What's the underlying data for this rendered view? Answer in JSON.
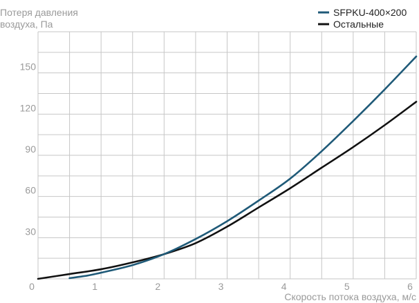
{
  "chart_data": {
    "type": "line",
    "xlabel": "Скорость потока воздуха, м/с",
    "ylabel_lines": [
      "Потеря давления",
      "воздуха, Па"
    ],
    "xlim": [
      0,
      6
    ],
    "ylim": [
      0,
      180
    ],
    "xticks": [
      0,
      1,
      2,
      3,
      4,
      5,
      6
    ],
    "xtick_labels": [
      "0",
      "1",
      "2",
      "3",
      "4",
      "5",
      "6"
    ],
    "yticks": [
      30,
      60,
      90,
      120,
      150
    ],
    "ytick_labels": [
      "30",
      "60",
      "90",
      "120",
      "150"
    ],
    "grid": true,
    "legend_position": "top-right",
    "series": [
      {
        "name": "SFPKU-400×200",
        "color": "#1f5a78",
        "x": [
          0.5,
          0.8,
          1.0,
          1.5,
          2.0,
          2.5,
          3.0,
          3.5,
          4.0,
          4.5,
          5.0,
          5.5,
          6.0
        ],
        "y": [
          0.5,
          2.5,
          4.5,
          10,
          18,
          29,
          42,
          57,
          73,
          93,
          115,
          138,
          162
        ]
      },
      {
        "name": "Остальные",
        "color": "#111111",
        "x": [
          0.0,
          0.5,
          1.0,
          1.5,
          2.0,
          2.5,
          3.0,
          3.5,
          4.0,
          4.5,
          5.0,
          5.5,
          6.0
        ],
        "y": [
          0,
          3.5,
          7,
          12,
          18,
          26,
          38,
          52,
          66,
          81,
          96,
          112,
          129
        ]
      }
    ]
  }
}
